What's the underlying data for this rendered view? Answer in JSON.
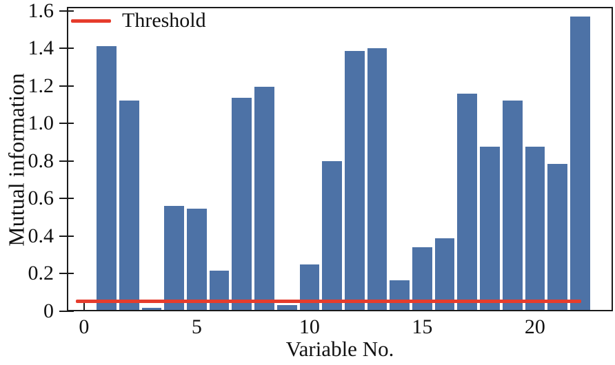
{
  "chart_data": {
    "type": "bar",
    "title": "",
    "xlabel": "Variable No.",
    "ylabel": "Mutual information",
    "x": [
      1,
      2,
      3,
      4,
      5,
      6,
      7,
      8,
      9,
      10,
      11,
      12,
      13,
      14,
      15,
      16,
      17,
      18,
      19,
      20,
      21,
      22
    ],
    "values": [
      1.41,
      1.12,
      0.02,
      0.56,
      0.545,
      0.215,
      1.135,
      1.195,
      0.035,
      0.25,
      0.8,
      1.385,
      1.4,
      0.165,
      0.34,
      0.39,
      1.16,
      0.875,
      1.12,
      0.875,
      0.785,
      1.57
    ],
    "bar_color": "#4d72a6",
    "bar_width": 0.88,
    "xlim": [
      -0.76,
      23.46
    ],
    "ylim": [
      0,
      1.62
    ],
    "xticks": [
      0,
      5,
      10,
      15,
      20
    ],
    "xtick_labels": [
      "0",
      "5",
      "10",
      "15",
      "20"
    ],
    "yticks": [
      0,
      0.2,
      0.4,
      0.6,
      0.8,
      1.0,
      1.2,
      1.4,
      1.6
    ],
    "ytick_labels": [
      "0",
      "0.2",
      "0.4",
      "0.6",
      "0.8",
      "1.0",
      "1.2",
      "1.4",
      "1.6"
    ],
    "grid": false,
    "legend": {
      "position": "upper-left",
      "entries": [
        {
          "label": "Threshold",
          "color": "#e63c2c",
          "marker": "line"
        }
      ]
    },
    "threshold": {
      "value": 0.055,
      "color": "#e63c2c",
      "x_span": [
        -0.37,
        22.05
      ]
    },
    "axis_color": "#1a1a1a"
  }
}
